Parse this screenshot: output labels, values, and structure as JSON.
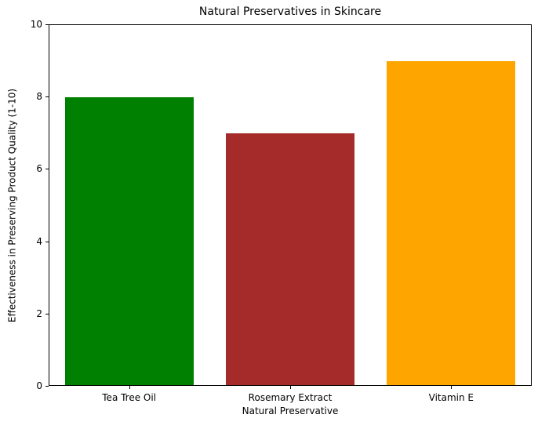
{
  "chart_data": {
    "type": "bar",
    "title": "Natural Preservatives in Skincare",
    "xlabel": "Natural Preservative",
    "ylabel": "Effectiveness in Preserving Product Quality (1-10)",
    "categories": [
      "Tea Tree Oil",
      "Rosemary Extract",
      "Vitamin E"
    ],
    "values": [
      8,
      7,
      9
    ],
    "bar_colors": [
      "#008000",
      "#A52A2A",
      "#FFA500"
    ],
    "ylim": [
      0,
      10
    ],
    "yticks": [
      0,
      2,
      4,
      6,
      8,
      10
    ],
    "grid": false,
    "legend": "none",
    "spine_color": "#000000",
    "background_color": "#ffffff"
  }
}
